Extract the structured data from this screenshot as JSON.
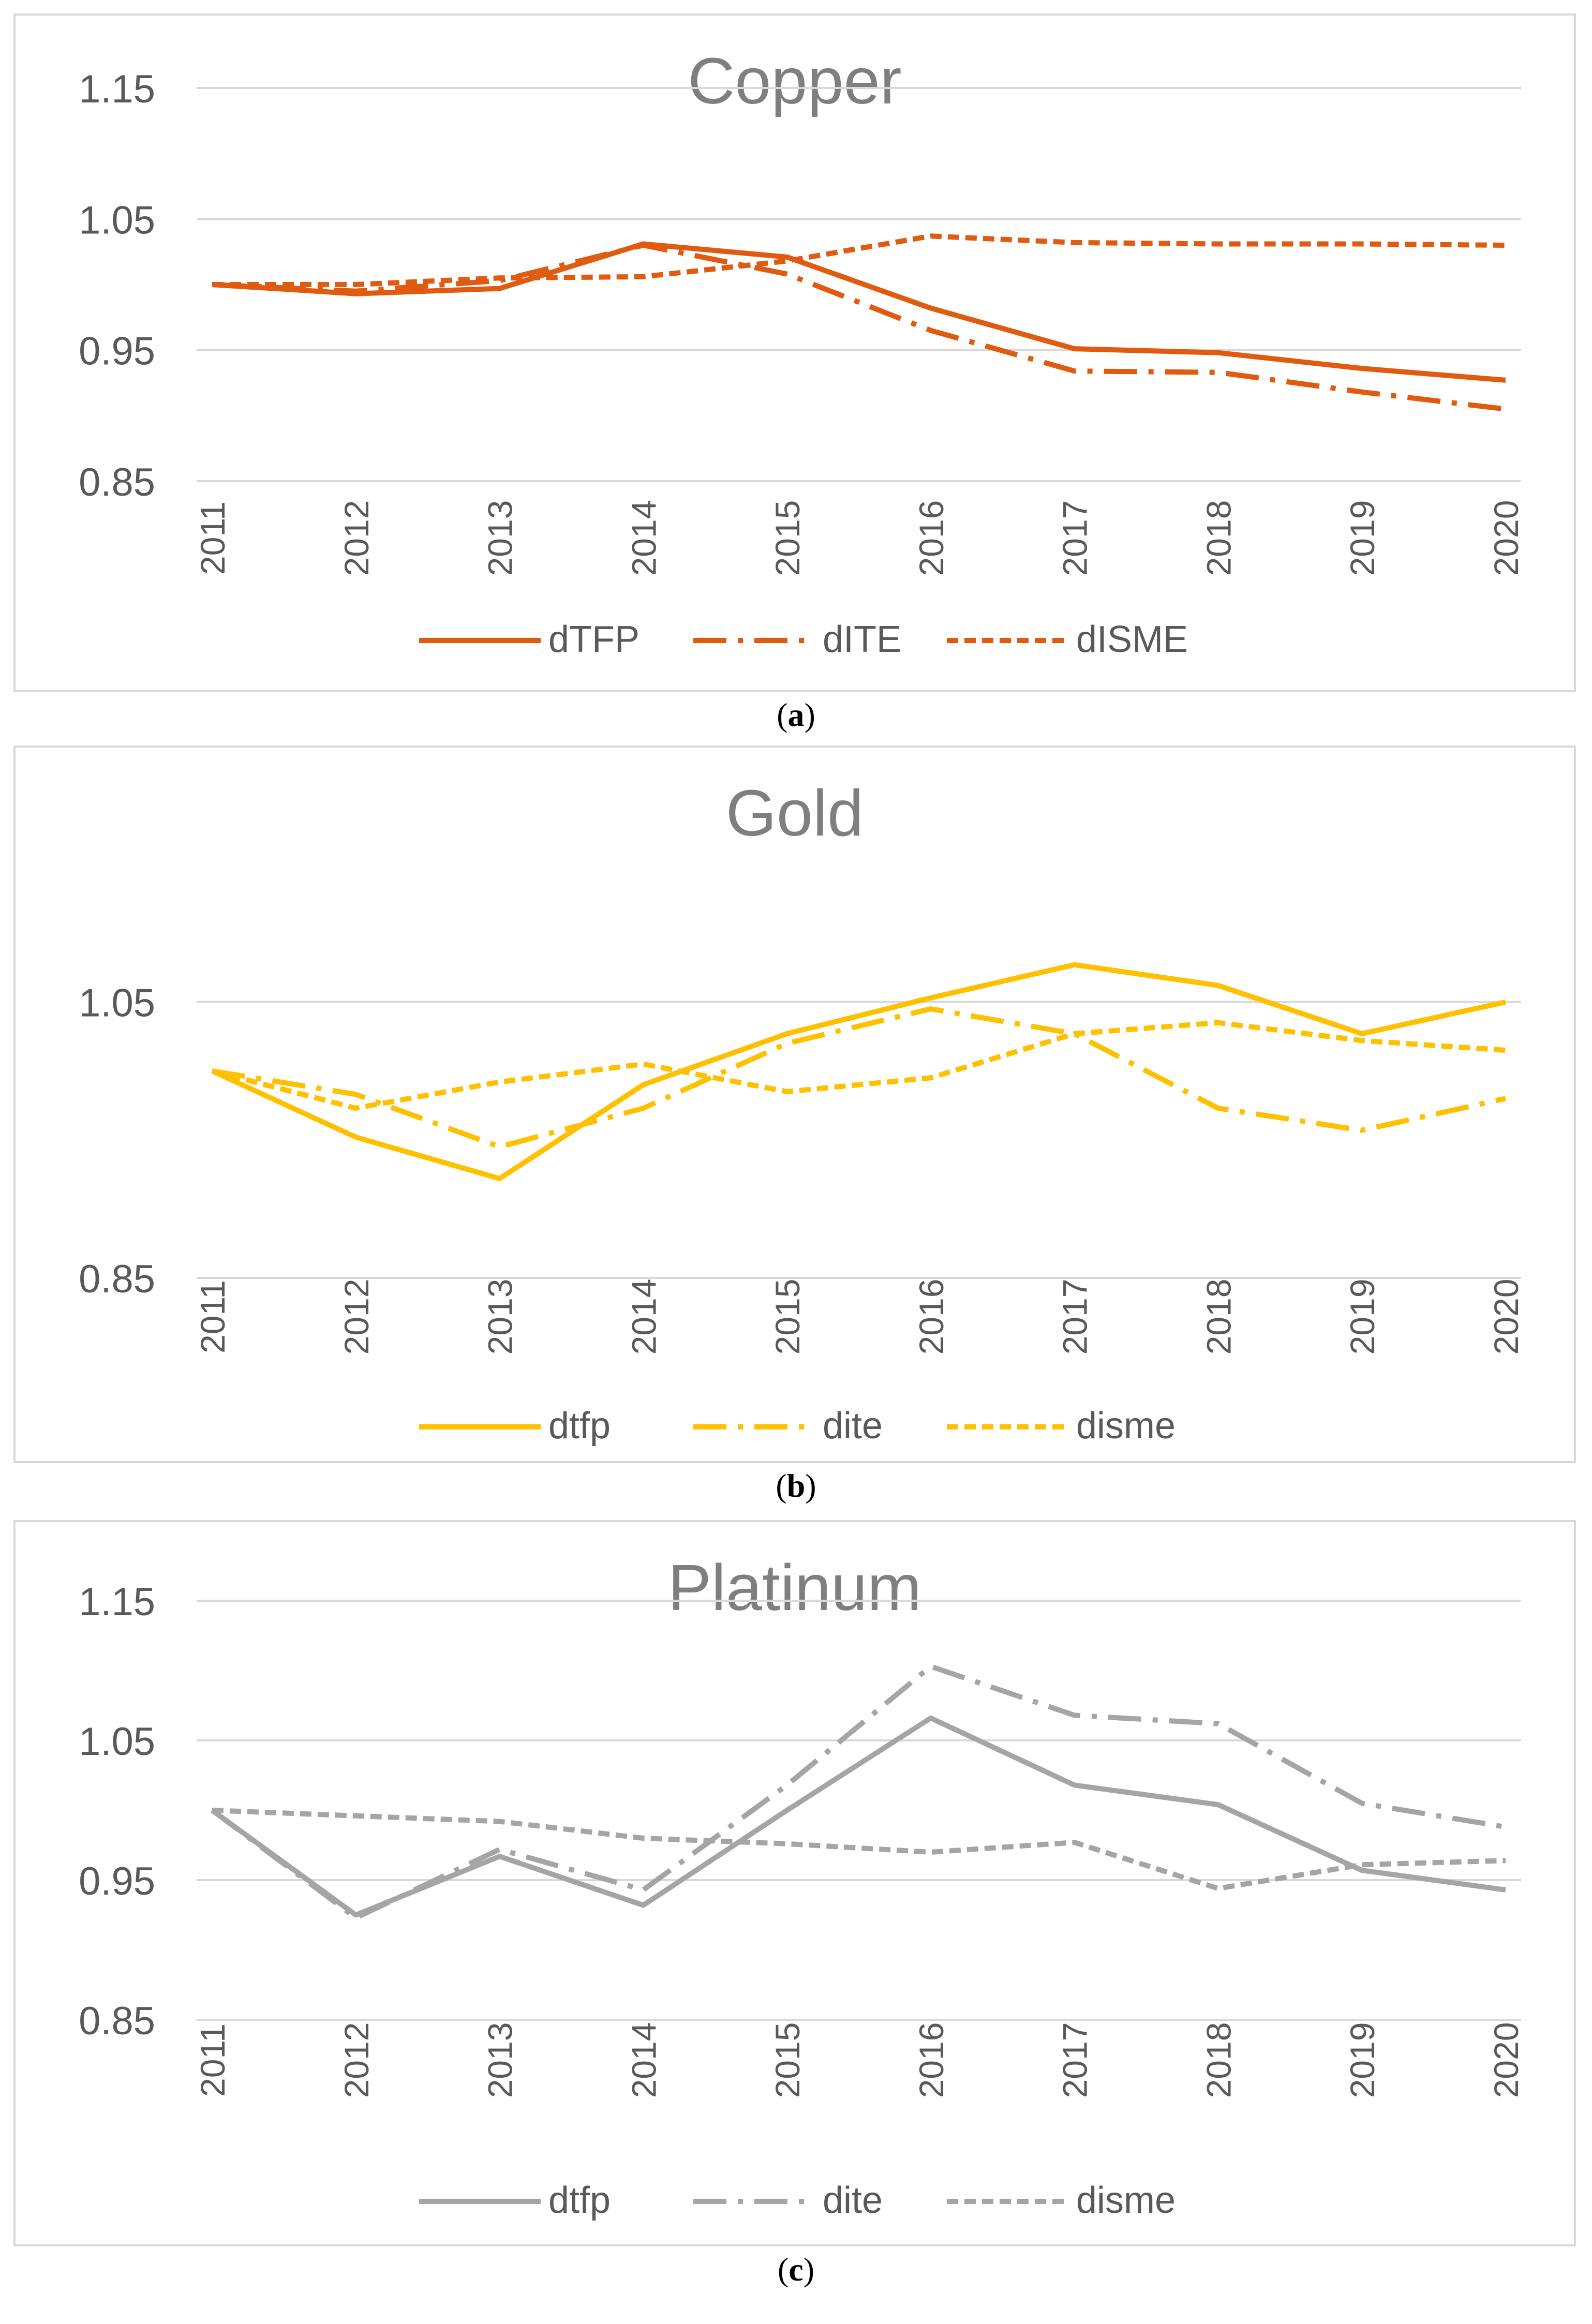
{
  "chart_data": [
    {
      "type": "line",
      "title": "Copper",
      "caption": "a",
      "color": "#e05b10",
      "categories": [
        "2011",
        "2012",
        "2013",
        "2014",
        "2015",
        "2016",
        "2017",
        "2018",
        "2019",
        "2020"
      ],
      "yticks": [
        "1.15",
        "1.05",
        "0.95",
        "0.85"
      ],
      "ylim": [
        0.85,
        1.15
      ],
      "legend_position": "bottom",
      "series": [
        {
          "name": "dTFP",
          "style": "solid",
          "values": [
            1.0,
            0.993,
            0.997,
            1.031,
            1.021,
            0.982,
            0.951,
            0.948,
            0.936,
            0.927
          ]
        },
        {
          "name": "dITE",
          "style": "dashdot",
          "values": [
            1.0,
            0.995,
            1.003,
            1.03,
            1.008,
            0.965,
            0.934,
            0.933,
            0.918,
            0.905
          ]
        },
        {
          "name": "dISME",
          "style": "dash",
          "values": [
            1.0,
            1.0,
            1.005,
            1.006,
            1.018,
            1.037,
            1.032,
            1.031,
            1.031,
            1.03
          ]
        }
      ]
    },
    {
      "type": "line",
      "title": "Gold",
      "caption": "b",
      "color": "#ffc000",
      "categories": [
        "2011",
        "2012",
        "2013",
        "2014",
        "2015",
        "2016",
        "2017",
        "2018",
        "2019",
        "2020"
      ],
      "yticks": [
        "1.05",
        "0.85"
      ],
      "ylim": [
        0.85,
        1.15
      ],
      "legend_position": "bottom",
      "series": [
        {
          "name": "dtfp",
          "style": "solid",
          "values": [
            1.0,
            0.952,
            0.922,
            0.99,
            1.027,
            1.053,
            1.077,
            1.062,
            1.027,
            1.05
          ]
        },
        {
          "name": "dite",
          "style": "dashdot",
          "values": [
            1.0,
            0.983,
            0.945,
            0.973,
            1.02,
            1.045,
            1.027,
            0.973,
            0.957,
            0.98
          ]
        },
        {
          "name": "disme",
          "style": "dash",
          "values": [
            1.0,
            0.973,
            0.992,
            1.005,
            0.985,
            0.995,
            1.027,
            1.035,
            1.022,
            1.015
          ]
        }
      ]
    },
    {
      "type": "line",
      "title": "Platinum",
      "caption": "c",
      "color": "#a5a5a5",
      "categories": [
        "2011",
        "2012",
        "2013",
        "2014",
        "2015",
        "2016",
        "2017",
        "2018",
        "2019",
        "2020"
      ],
      "yticks": [
        "1.15",
        "1.05",
        "0.95",
        "0.85"
      ],
      "ylim": [
        0.85,
        1.15
      ],
      "legend_position": "bottom",
      "series": [
        {
          "name": "dtfp",
          "style": "solid",
          "values": [
            1.0,
            0.925,
            0.967,
            0.932,
            1.0,
            1.066,
            1.018,
            1.004,
            0.957,
            0.943
          ]
        },
        {
          "name": "dite",
          "style": "dashdot",
          "values": [
            1.0,
            0.923,
            0.972,
            0.943,
            1.018,
            1.103,
            1.068,
            1.062,
            1.005,
            0.988
          ]
        },
        {
          "name": "disme",
          "style": "dash",
          "values": [
            1.0,
            0.996,
            0.992,
            0.98,
            0.976,
            0.97,
            0.977,
            0.944,
            0.961,
            0.964
          ]
        }
      ]
    }
  ]
}
